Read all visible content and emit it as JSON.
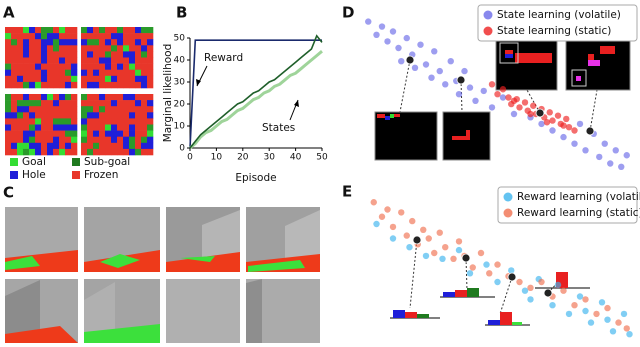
{
  "panels": [
    "A",
    "B",
    "C",
    "D",
    "E"
  ],
  "legend_a": [
    {
      "label": "Goal",
      "color": "#33dd33"
    },
    {
      "label": "Sub-goal",
      "color": "#1f7a1f"
    },
    {
      "label": "Hole",
      "color": "#1f1fd8"
    },
    {
      "label": "Frozen",
      "color": "#e8362a"
    }
  ],
  "chart_data": [
    {
      "type": "line",
      "xlabel": "Episode",
      "ylabel": "Marginal likelihood",
      "x": [
        0,
        2,
        4,
        6,
        8,
        10,
        12,
        14,
        16,
        18,
        20,
        22,
        24,
        26,
        28,
        30,
        32,
        34,
        36,
        38,
        40,
        42,
        44,
        46,
        48,
        50
      ],
      "series": [
        {
          "name": "Reward",
          "color": "#1a2a6c",
          "values": [
            0,
            49,
            49,
            49,
            49,
            49,
            49,
            49,
            49,
            49,
            49,
            49,
            49,
            49,
            49,
            49,
            49,
            49,
            49,
            49,
            49,
            49,
            49,
            49,
            49,
            49
          ]
        },
        {
          "color": "#9fd49a",
          "values": [
            0,
            2,
            5,
            7,
            8,
            10,
            12,
            13,
            15,
            17,
            18,
            20,
            22,
            23,
            25,
            26,
            28,
            29,
            31,
            33,
            34,
            36,
            38,
            40,
            42,
            44
          ]
        },
        {
          "name": "States",
          "color": "#1f5f2a",
          "values": [
            0,
            3,
            6,
            8,
            10,
            12,
            14,
            16,
            18,
            20,
            21,
            23,
            25,
            26,
            28,
            30,
            31,
            33,
            35,
            37,
            39,
            41,
            43,
            45,
            51,
            48
          ]
        }
      ],
      "xlim": [
        0,
        50
      ],
      "ylim": [
        0,
        50
      ],
      "xticks": [
        0,
        10,
        20,
        30,
        40,
        50
      ],
      "yticks": [
        0,
        10,
        20,
        30,
        40,
        50
      ]
    },
    {
      "type": "scatter",
      "xlim": [
        0,
        100
      ],
      "ylim": [
        0,
        100
      ],
      "series": [
        {
          "name": "State learning (volatile)",
          "color": "#6a6ae8",
          "x": [
            3,
            6,
            8,
            10,
            12,
            14,
            15,
            17,
            19,
            20,
            22,
            24,
            26,
            27,
            29,
            31,
            33,
            35,
            36,
            38,
            40,
            42,
            45,
            48,
            52,
            56,
            62,
            66,
            70,
            74,
            78,
            80,
            82,
            85,
            87,
            89,
            91,
            93,
            95,
            97
          ],
          "y": [
            96,
            88,
            93,
            84,
            90,
            80,
            72,
            86,
            76,
            68,
            82,
            70,
            62,
            78,
            66,
            58,
            72,
            60,
            52,
            66,
            56,
            48,
            54,
            44,
            50,
            40,
            38,
            34,
            30,
            26,
            22,
            34,
            18,
            28,
            14,
            22,
            10,
            18,
            8,
            15
          ]
        },
        {
          "name": "State learning (static)",
          "color": "#ee2020",
          "x": [
            48,
            50,
            52,
            54,
            55,
            57,
            58,
            60,
            61,
            63,
            64,
            66,
            67,
            69,
            70,
            72,
            73,
            75,
            76,
            78,
            68,
            62,
            56,
            74
          ],
          "y": [
            58,
            52,
            55,
            50,
            46,
            49,
            44,
            47,
            42,
            45,
            40,
            43,
            38,
            41,
            36,
            39,
            34,
            37,
            32,
            30,
            35,
            40,
            48,
            33
          ]
        }
      ]
    },
    {
      "type": "scatter",
      "xlim": [
        0,
        100
      ],
      "ylim": [
        0,
        100
      ],
      "series": [
        {
          "name": "Reward learning (volatile)",
          "color": "#3cb4ee",
          "x": [
            6,
            12,
            18,
            24,
            30,
            36,
            40,
            46,
            50,
            55,
            60,
            65,
            70,
            72,
            76,
            80,
            84,
            88,
            92,
            96,
            98,
            90,
            82,
            62
          ],
          "y": [
            80,
            70,
            64,
            58,
            56,
            62,
            46,
            52,
            40,
            48,
            34,
            42,
            24,
            38,
            18,
            30,
            12,
            26,
            6,
            18,
            4,
            14,
            20,
            28
          ]
        },
        {
          "name": "Reward learning (static)",
          "color": "#f07050",
          "x": [
            5,
            8,
            10,
            12,
            15,
            17,
            19,
            21,
            23,
            25,
            27,
            29,
            31,
            34,
            36,
            38,
            41,
            44,
            47,
            50,
            54,
            58,
            62,
            66,
            70,
            74,
            78,
            82,
            86,
            90,
            94,
            97
          ],
          "y": [
            95,
            85,
            90,
            78,
            88,
            72,
            82,
            66,
            76,
            70,
            60,
            74,
            64,
            56,
            68,
            58,
            50,
            60,
            46,
            52,
            44,
            40,
            36,
            40,
            30,
            34,
            24,
            28,
            18,
            22,
            12,
            8
          ]
        }
      ]
    }
  ],
  "annotations": [
    "Reward",
    "States"
  ]
}
